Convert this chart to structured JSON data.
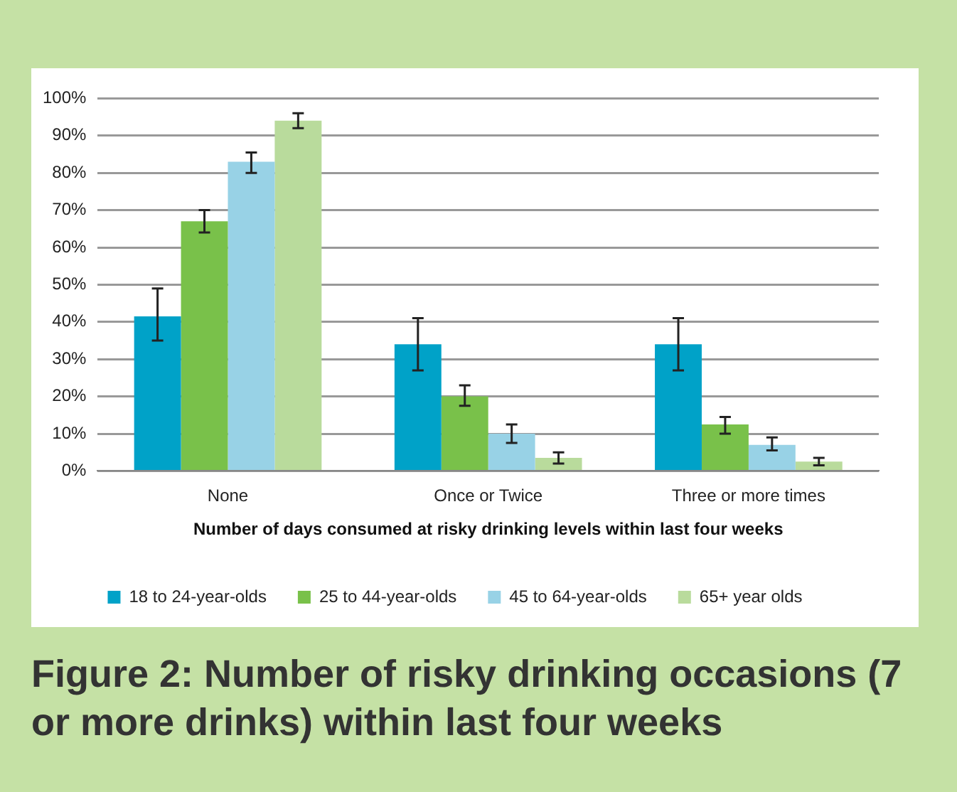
{
  "chart_data": {
    "type": "bar",
    "title": "Figure 2: Number of risky drinking occasions (7 or more drinks) within last four weeks",
    "xlabel": "Number of days consumed at risky drinking levels within last four weeks",
    "categories": [
      "None",
      "Once or Twice",
      "Three or more times"
    ],
    "series": [
      {
        "name": "18 to 24-year-olds",
        "color": "#00a2c8",
        "values": [
          41.5,
          34,
          34
        ],
        "errors": [
          [
            35,
            49
          ],
          [
            27,
            41
          ],
          [
            27,
            41
          ]
        ]
      },
      {
        "name": "25 to 44-year-olds",
        "color": "#79c14a",
        "values": [
          67,
          20,
          12.5
        ],
        "errors": [
          [
            64,
            70
          ],
          [
            17.5,
            23
          ],
          [
            10,
            14.5
          ]
        ]
      },
      {
        "name": "45 to 64-year-olds",
        "color": "#98d2e6",
        "values": [
          83,
          10,
          7
        ],
        "errors": [
          [
            80,
            85.5
          ],
          [
            7.5,
            12.5
          ],
          [
            5.5,
            9
          ]
        ]
      },
      {
        "name": "65+ year olds",
        "color": "#b9db9c",
        "values": [
          94,
          3.5,
          2.5
        ],
        "errors": [
          [
            92,
            96
          ],
          [
            2,
            5
          ],
          [
            1.5,
            3.5
          ]
        ]
      }
    ],
    "ylim": [
      0,
      100
    ],
    "yticks": [
      {
        "value": 0,
        "label": "0%"
      },
      {
        "value": 10,
        "label": "10%"
      },
      {
        "value": 20,
        "label": "20%"
      },
      {
        "value": 30,
        "label": "30%"
      },
      {
        "value": 40,
        "label": "40%"
      },
      {
        "value": 50,
        "label": "50%"
      },
      {
        "value": 60,
        "label": "60%"
      },
      {
        "value": 70,
        "label": "70%"
      },
      {
        "value": 80,
        "label": "80%"
      },
      {
        "value": 90,
        "label": "90%"
      },
      {
        "value": 100,
        "label": "100%"
      }
    ],
    "grid": "y",
    "legend": "bottom"
  }
}
